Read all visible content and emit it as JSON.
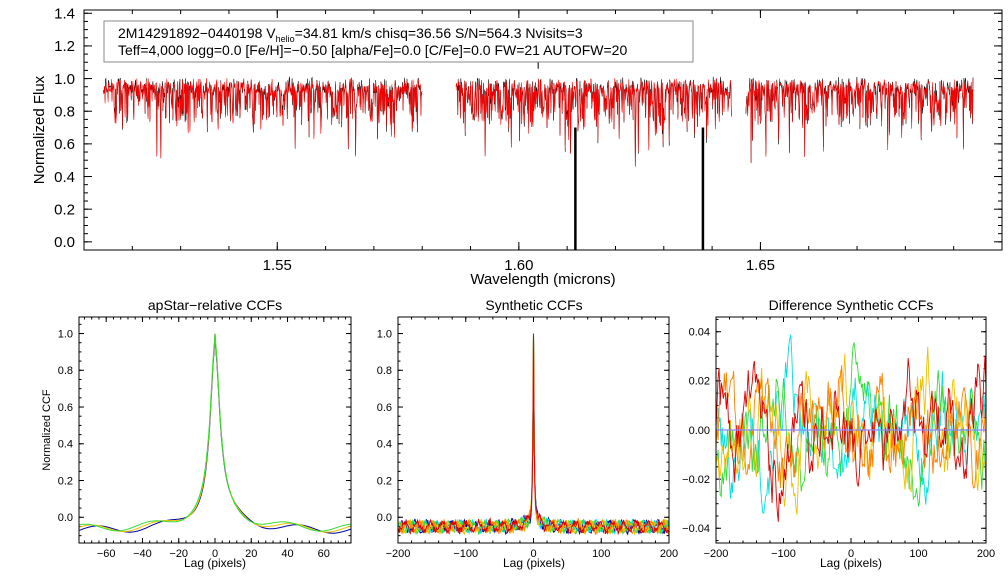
{
  "colors": {
    "axis": "#000000",
    "observed": "#000000",
    "model": "#ff0000",
    "ccf_series": [
      "#0000a0",
      "#00e0e0",
      "#33dd33",
      "#f0c000",
      "#ff8000",
      "#dd0000"
    ]
  },
  "chart_data": [
    {
      "id": "spectrum",
      "type": "line",
      "title": "",
      "xlabel": "Wavelength (microns)",
      "ylabel": "Normalized Flux",
      "xlim": [
        1.51,
        1.7
      ],
      "ylim": [
        -0.05,
        1.42
      ],
      "xticks": [
        1.55,
        1.6,
        1.65
      ],
      "xtick_labels": [
        "1.55",
        "1.60",
        "1.65"
      ],
      "yticks": [
        0.0,
        0.2,
        0.4,
        0.6,
        0.8,
        1.0,
        1.2,
        1.4
      ],
      "ytick_labels": [
        "0.0",
        "0.2",
        "0.4",
        "0.6",
        "0.8",
        "1.0",
        "1.2",
        "1.4"
      ],
      "segments": [
        [
          1.514,
          1.58
        ],
        [
          1.587,
          1.644
        ],
        [
          1.647,
          1.694
        ]
      ],
      "spikes": [
        1.6117,
        1.6381
      ],
      "spike_up": 1.604,
      "series": [
        {
          "name": "observed",
          "color_key": "observed"
        },
        {
          "name": "synthetic",
          "color_key": "model"
        }
      ],
      "legend": {
        "position": "top-left",
        "line1": "2M14291892−0440198  V",
        "line1_sub": "helio",
        "line1_rest": "=34.81 km/s  chisq=36.56  S/N=564.3  Nvisits=3",
        "line2": "Teff=4,000 logg=0.0 [Fe/H]=−0.50 [alpha/Fe]=0.0 [C/Fe]=0.0 FW=21 AUTOFW=20"
      }
    },
    {
      "id": "apstar_ccf",
      "type": "line",
      "title": "apStar−relative CCFs",
      "xlabel": "Lag (pixels)",
      "ylabel": "Normalized CCF",
      "xlim": [
        -75,
        75
      ],
      "ylim": [
        -0.14,
        1.09
      ],
      "xticks": [
        -60,
        -40,
        -20,
        0,
        20,
        40,
        60
      ],
      "xtick_labels": [
        "−60",
        "−40",
        "−20",
        "0",
        "20",
        "40",
        "60"
      ],
      "yticks": [
        0.0,
        0.2,
        0.4,
        0.6,
        0.8,
        1.0
      ],
      "ytick_labels": [
        "0.0",
        "0.2",
        "0.4",
        "0.6",
        "0.8",
        "1.0"
      ],
      "peak": 1.0,
      "series_count": 3
    },
    {
      "id": "synthetic_ccf",
      "type": "line",
      "title": "Synthetic CCFs",
      "xlabel": "Lag (pixels)",
      "ylabel": "",
      "xlim": [
        -200,
        200
      ],
      "ylim": [
        -0.14,
        1.09
      ],
      "xticks": [
        -200,
        -100,
        0,
        100,
        200
      ],
      "xtick_labels": [
        "−200",
        "−100",
        "0",
        "100",
        "200"
      ],
      "yticks": [
        0.0,
        0.2,
        0.4,
        0.6,
        0.8,
        1.0
      ],
      "ytick_labels": [
        "0.0",
        "0.2",
        "0.4",
        "0.6",
        "0.8",
        "1.0"
      ],
      "peak": 1.0,
      "series_count": 6
    },
    {
      "id": "diff_ccf",
      "type": "line",
      "title": "Difference Synthetic CCFs",
      "xlabel": "Lag (pixels)",
      "ylabel": "",
      "xlim": [
        -200,
        200
      ],
      "ylim": [
        -0.046,
        0.046
      ],
      "xticks": [
        -200,
        -100,
        0,
        100,
        200
      ],
      "xtick_labels": [
        "−200",
        "−100",
        "0",
        "100",
        "200"
      ],
      "yticks": [
        -0.04,
        -0.02,
        0.0,
        0.02,
        0.04
      ],
      "ytick_labels": [
        "−0.04",
        "−0.02",
        "0.00",
        "0.02",
        "0.04"
      ],
      "zero_line_color": "#8888ff",
      "series_count": 5
    }
  ]
}
